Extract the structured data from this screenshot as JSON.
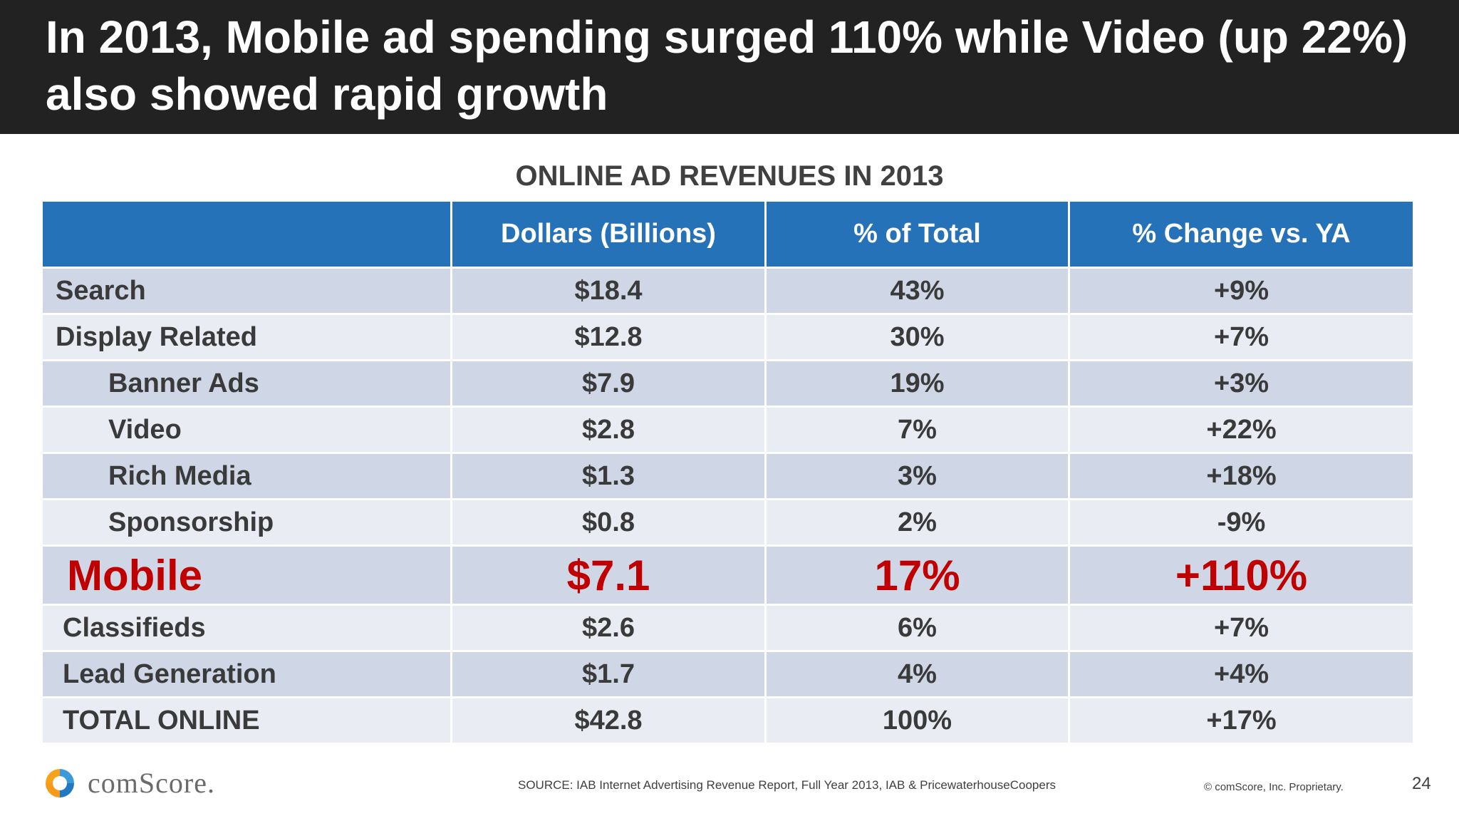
{
  "slide": {
    "title": "In 2013, Mobile ad spending surged  110% while Video (up 22%) also showed rapid growth",
    "subtitle": "ONLINE AD REVENUES IN 2013"
  },
  "table": {
    "headers": [
      "",
      "Dollars (Billions)",
      "% of Total",
      "% Change   vs. YA"
    ],
    "rows": [
      {
        "label": "Search",
        "dollars": "$18.4",
        "pct_total": "43%",
        "pct_change": "+9%"
      },
      {
        "label": "Display Related",
        "dollars": "$12.8",
        "pct_total": "30%",
        "pct_change": "+7%"
      },
      {
        "label": "Banner Ads",
        "dollars": "$7.9",
        "pct_total": "19%",
        "pct_change": "+3%"
      },
      {
        "label": "Video",
        "dollars": "$2.8",
        "pct_total": "7%",
        "pct_change": "+22%"
      },
      {
        "label": "Rich Media",
        "dollars": "$1.3",
        "pct_total": "3%",
        "pct_change": "+18%"
      },
      {
        "label": "Sponsorship",
        "dollars": "$0.8",
        "pct_total": "2%",
        "pct_change": "-9%"
      },
      {
        "label": "Mobile",
        "dollars": "$7.1",
        "pct_total": "17%",
        "pct_change": "+110%"
      },
      {
        "label": "Classifieds",
        "dollars": "$2.6",
        "pct_total": "6%",
        "pct_change": "+7%"
      },
      {
        "label": "Lead Generation",
        "dollars": "$1.7",
        "pct_total": "4%",
        "pct_change": "+4%"
      },
      {
        "label": "TOTAL ONLINE",
        "dollars": "$42.8",
        "pct_total": "100%",
        "pct_change": "+17%"
      }
    ]
  },
  "footer": {
    "logo_text": "comScore.",
    "source": "SOURCE: IAB Internet Advertising Revenue Report, Full Year 2013, IAB & PricewaterhouseCoopers",
    "copyright": "© comScore, Inc. Proprietary.",
    "page_number": "24"
  },
  "colors": {
    "title_bg": "#222222",
    "header_bg": "#2572b9",
    "row_dark": "#cfd6e6",
    "row_light": "#e9ecf3",
    "highlight": "#c00000"
  }
}
